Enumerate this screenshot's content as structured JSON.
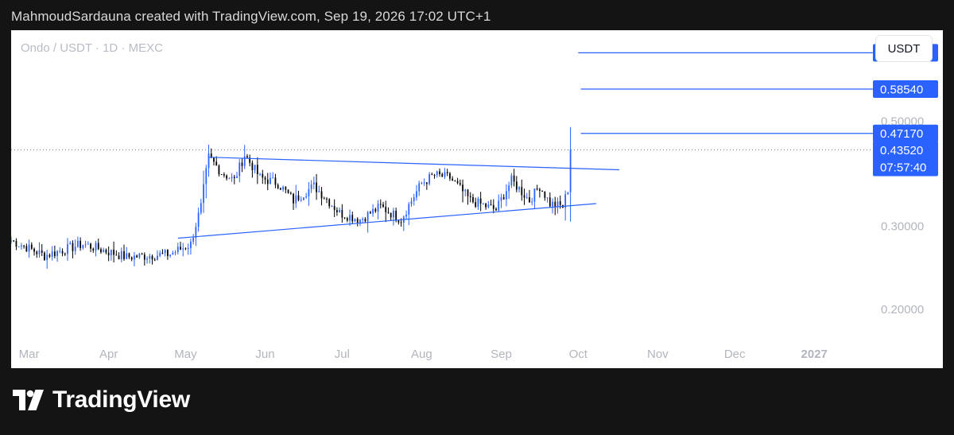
{
  "header": {
    "attribution": "MahmoudSardauna created with TradingView.com, Sep 19, 2026 17:02 UTC+1"
  },
  "chart": {
    "symbol_label": "Ondo / USDT · 1D · MEXC",
    "currency_button": "USDT"
  },
  "footer": {
    "brand": "TradingView"
  },
  "colors": {
    "up_candle": "#2962ff",
    "down_candle": "#000000",
    "line_color": "#2962ff",
    "price_tag": "#2962ff",
    "axis_text": "#b2b5be",
    "page_bg": "#141414"
  },
  "chart_data": {
    "type": "candlestick",
    "title": "",
    "xlabel": "",
    "ylabel": "",
    "y_scale": "log",
    "ylim": [
      0.17,
      0.78
    ],
    "xlim": [
      "2026-02-22",
      "2027-01-22"
    ],
    "x_ticks": [
      {
        "date": "2026-03-01",
        "label": "Mar"
      },
      {
        "date": "2026-04-01",
        "label": "Apr"
      },
      {
        "date": "2026-05-01",
        "label": "May"
      },
      {
        "date": "2026-06-01",
        "label": "Jun"
      },
      {
        "date": "2026-07-01",
        "label": "Jul"
      },
      {
        "date": "2026-08-01",
        "label": "Aug"
      },
      {
        "date": "2026-09-01",
        "label": "Sep"
      },
      {
        "date": "2026-10-01",
        "label": "Oct"
      },
      {
        "date": "2026-11-01",
        "label": "Nov"
      },
      {
        "date": "2026-12-01",
        "label": "Dec"
      },
      {
        "date": "2027-01-01",
        "label": "2027"
      }
    ],
    "y_ticks": [
      {
        "value": 0.2,
        "label": "0.20000"
      },
      {
        "value": 0.3,
        "label": "0.30000"
      },
      {
        "value": 0.5,
        "label": "0.50000"
      }
    ],
    "key_points": [
      {
        "date": "2026-02-22",
        "close": 0.28
      },
      {
        "date": "2026-03-07",
        "close": 0.26
      },
      {
        "date": "2026-03-22",
        "close": 0.275
      },
      {
        "date": "2026-04-08",
        "close": 0.258
      },
      {
        "date": "2026-04-25",
        "close": 0.262
      },
      {
        "date": "2026-05-03",
        "close": 0.275
      },
      {
        "date": "2026-05-07",
        "close": 0.33
      },
      {
        "date": "2026-05-10",
        "close": 0.42
      },
      {
        "date": "2026-05-15",
        "close": 0.39
      },
      {
        "date": "2026-05-20",
        "close": 0.375
      },
      {
        "date": "2026-05-24",
        "close": 0.425
      },
      {
        "date": "2026-05-30",
        "close": 0.38
      },
      {
        "date": "2026-06-06",
        "close": 0.37
      },
      {
        "date": "2026-06-12",
        "close": 0.34
      },
      {
        "date": "2026-06-20",
        "close": 0.365
      },
      {
        "date": "2026-06-30",
        "close": 0.32
      },
      {
        "date": "2026-07-08",
        "close": 0.31
      },
      {
        "date": "2026-07-16",
        "close": 0.33
      },
      {
        "date": "2026-07-24",
        "close": 0.31
      },
      {
        "date": "2026-08-01",
        "close": 0.37
      },
      {
        "date": "2026-08-06",
        "close": 0.385
      },
      {
        "date": "2026-08-12",
        "close": 0.38
      },
      {
        "date": "2026-08-20",
        "close": 0.34
      },
      {
        "date": "2026-08-30",
        "close": 0.325
      },
      {
        "date": "2026-09-05",
        "close": 0.375
      },
      {
        "date": "2026-09-12",
        "close": 0.34
      },
      {
        "date": "2026-09-16",
        "close": 0.365
      },
      {
        "date": "2026-09-20",
        "close": 0.335
      },
      {
        "date": "2026-09-25",
        "close": 0.33
      },
      {
        "date": "2026-09-27",
        "close": 0.36
      },
      {
        "date": "2026-09-28",
        "close": 0.42
      }
    ],
    "current_price": {
      "value": 0.4352,
      "label": "0.43520",
      "countdown": "07:57:40"
    },
    "horizontal_levels": [
      {
        "value": 0.69884,
        "label": "0.69884",
        "start_date": "2026-10-01"
      },
      {
        "value": 0.5854,
        "label": "0.58540",
        "start_date": "2026-10-02"
      },
      {
        "value": 0.4717,
        "label": "0.47170",
        "start_date": "2026-10-02"
      }
    ],
    "trendlines": [
      {
        "from": {
          "date": "2026-05-10",
          "value": 0.42
        },
        "to": {
          "date": "2026-10-17",
          "value": 0.395
        }
      },
      {
        "from": {
          "date": "2026-04-28",
          "value": 0.283
        },
        "to": {
          "date": "2026-10-08",
          "value": 0.335
        }
      }
    ]
  }
}
